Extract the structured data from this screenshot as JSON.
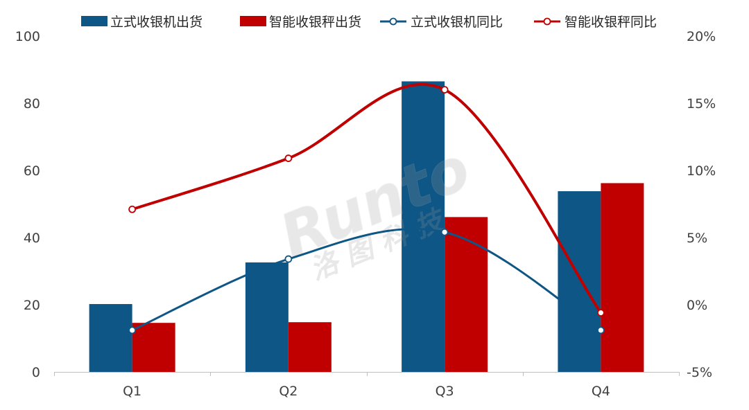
{
  "chart_data": {
    "type": "bar",
    "categories": [
      "Q1",
      "Q2",
      "Q3",
      "Q4"
    ],
    "series": [
      {
        "name": "立式收银机出货",
        "type": "bar",
        "axis": "left",
        "color": "#0E5686",
        "values": [
          20.2,
          32.6,
          86.5,
          53.8
        ]
      },
      {
        "name": "智能收银秤出货",
        "type": "bar",
        "axis": "left",
        "color": "#C00000",
        "values": [
          14.6,
          14.8,
          46.1,
          56.2
        ]
      },
      {
        "name": "立式收银机同比",
        "type": "line",
        "axis": "right",
        "color": "#0E5686",
        "values": [
          -1.9,
          3.4,
          5.4,
          -1.9
        ]
      },
      {
        "name": "智能收银秤同比",
        "type": "line",
        "axis": "right",
        "color": "#C00000",
        "values": [
          7.1,
          10.9,
          16.0,
          -0.6
        ]
      }
    ],
    "ylim_left": [
      0,
      100
    ],
    "yticks_left": [
      "0",
      "20",
      "40",
      "60",
      "80",
      "100"
    ],
    "ylim_right": [
      -5,
      20
    ],
    "yticks_right": [
      "-5%",
      "0%",
      "5%",
      "10%",
      "15%",
      "20%"
    ],
    "legend_position": "top",
    "grid": false
  },
  "watermark": {
    "brand": "Runto",
    "chinese": "洛 图 科 技"
  }
}
